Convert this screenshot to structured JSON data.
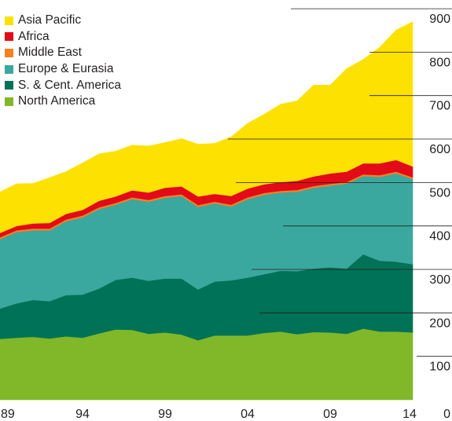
{
  "chart_data": {
    "type": "area",
    "stacked": true,
    "x": [
      1989,
      1990,
      1991,
      1992,
      1993,
      1994,
      1995,
      1996,
      1997,
      1998,
      1999,
      2000,
      2001,
      2002,
      2003,
      2004,
      2005,
      2006,
      2007,
      2008,
      2009,
      2010,
      2011,
      2012,
      2013,
      2014
    ],
    "x_tick_labels": [
      "89",
      "94",
      "99",
      "04",
      "09",
      "14"
    ],
    "x_tick_values": [
      1989,
      1994,
      1999,
      2004,
      2009,
      2014
    ],
    "y_ticks": [
      0,
      100,
      200,
      300,
      400,
      500,
      600,
      700,
      800,
      900
    ],
    "ylim": [
      0,
      920
    ],
    "title": "",
    "xlabel": "",
    "ylabel": "",
    "legend_position": "top-left",
    "series": [
      {
        "name": "North America",
        "color": "#80b82a",
        "values": [
          140,
          143,
          145,
          141,
          146,
          143,
          153,
          162,
          161,
          152,
          155,
          150,
          137,
          148,
          148,
          148,
          154,
          157,
          151,
          156,
          155,
          152,
          164,
          157,
          157,
          155
        ]
      },
      {
        "name": "S. & Cent. America",
        "color": "#007257",
        "values": [
          70,
          79,
          85,
          86,
          95,
          99,
          103,
          114,
          120,
          122,
          124,
          129,
          117,
          124,
          127,
          133,
          135,
          140,
          145,
          146,
          150,
          150,
          171,
          163,
          161,
          157
        ]
      },
      {
        "name": "Europe & Eurasia",
        "color": "#3aa89e",
        "values": [
          160,
          164,
          160,
          163,
          170,
          178,
          183,
          173,
          181,
          182,
          186,
          190,
          190,
          180,
          170,
          181,
          183,
          180,
          183,
          186,
          188,
          195,
          180,
          193,
          203,
          196
        ]
      },
      {
        "name": "Middle East",
        "color": "#f58220",
        "values": [
          4,
          4,
          4,
          4,
          4,
          4,
          4,
          4,
          4,
          4,
          4,
          4,
          4,
          4,
          4,
          4,
          4,
          4,
          4,
          4,
          4,
          4,
          4,
          4,
          4,
          4
        ]
      },
      {
        "name": "Africa",
        "color": "#e30b17",
        "values": [
          10,
          10,
          12,
          13,
          13,
          13,
          15,
          15,
          16,
          17,
          19,
          18,
          20,
          18,
          20,
          20,
          20,
          20,
          21,
          22,
          24,
          24,
          25,
          27,
          27,
          25
        ]
      },
      {
        "name": "Asia Pacific",
        "color": "#fde100",
        "values": [
          94,
          97,
          92,
          104,
          97,
          108,
          108,
          104,
          104,
          107,
          104,
          110,
          120,
          116,
          136,
          150,
          161,
          179,
          184,
          210,
          203,
          237,
          239,
          267,
          299,
          333
        ]
      }
    ]
  },
  "legend": {
    "items": [
      {
        "label": "Asia Pacific",
        "color": "#fde100"
      },
      {
        "label": "Africa",
        "color": "#e30b17"
      },
      {
        "label": "Middle East",
        "color": "#f58220"
      },
      {
        "label": "Europe & Eurasia",
        "color": "#3aa89e"
      },
      {
        "label": "S. & Cent. America",
        "color": "#007257"
      },
      {
        "label": "North America",
        "color": "#80b82a"
      }
    ]
  },
  "colors": {
    "gridline": "#231f20",
    "axis_text": "#231f20"
  }
}
